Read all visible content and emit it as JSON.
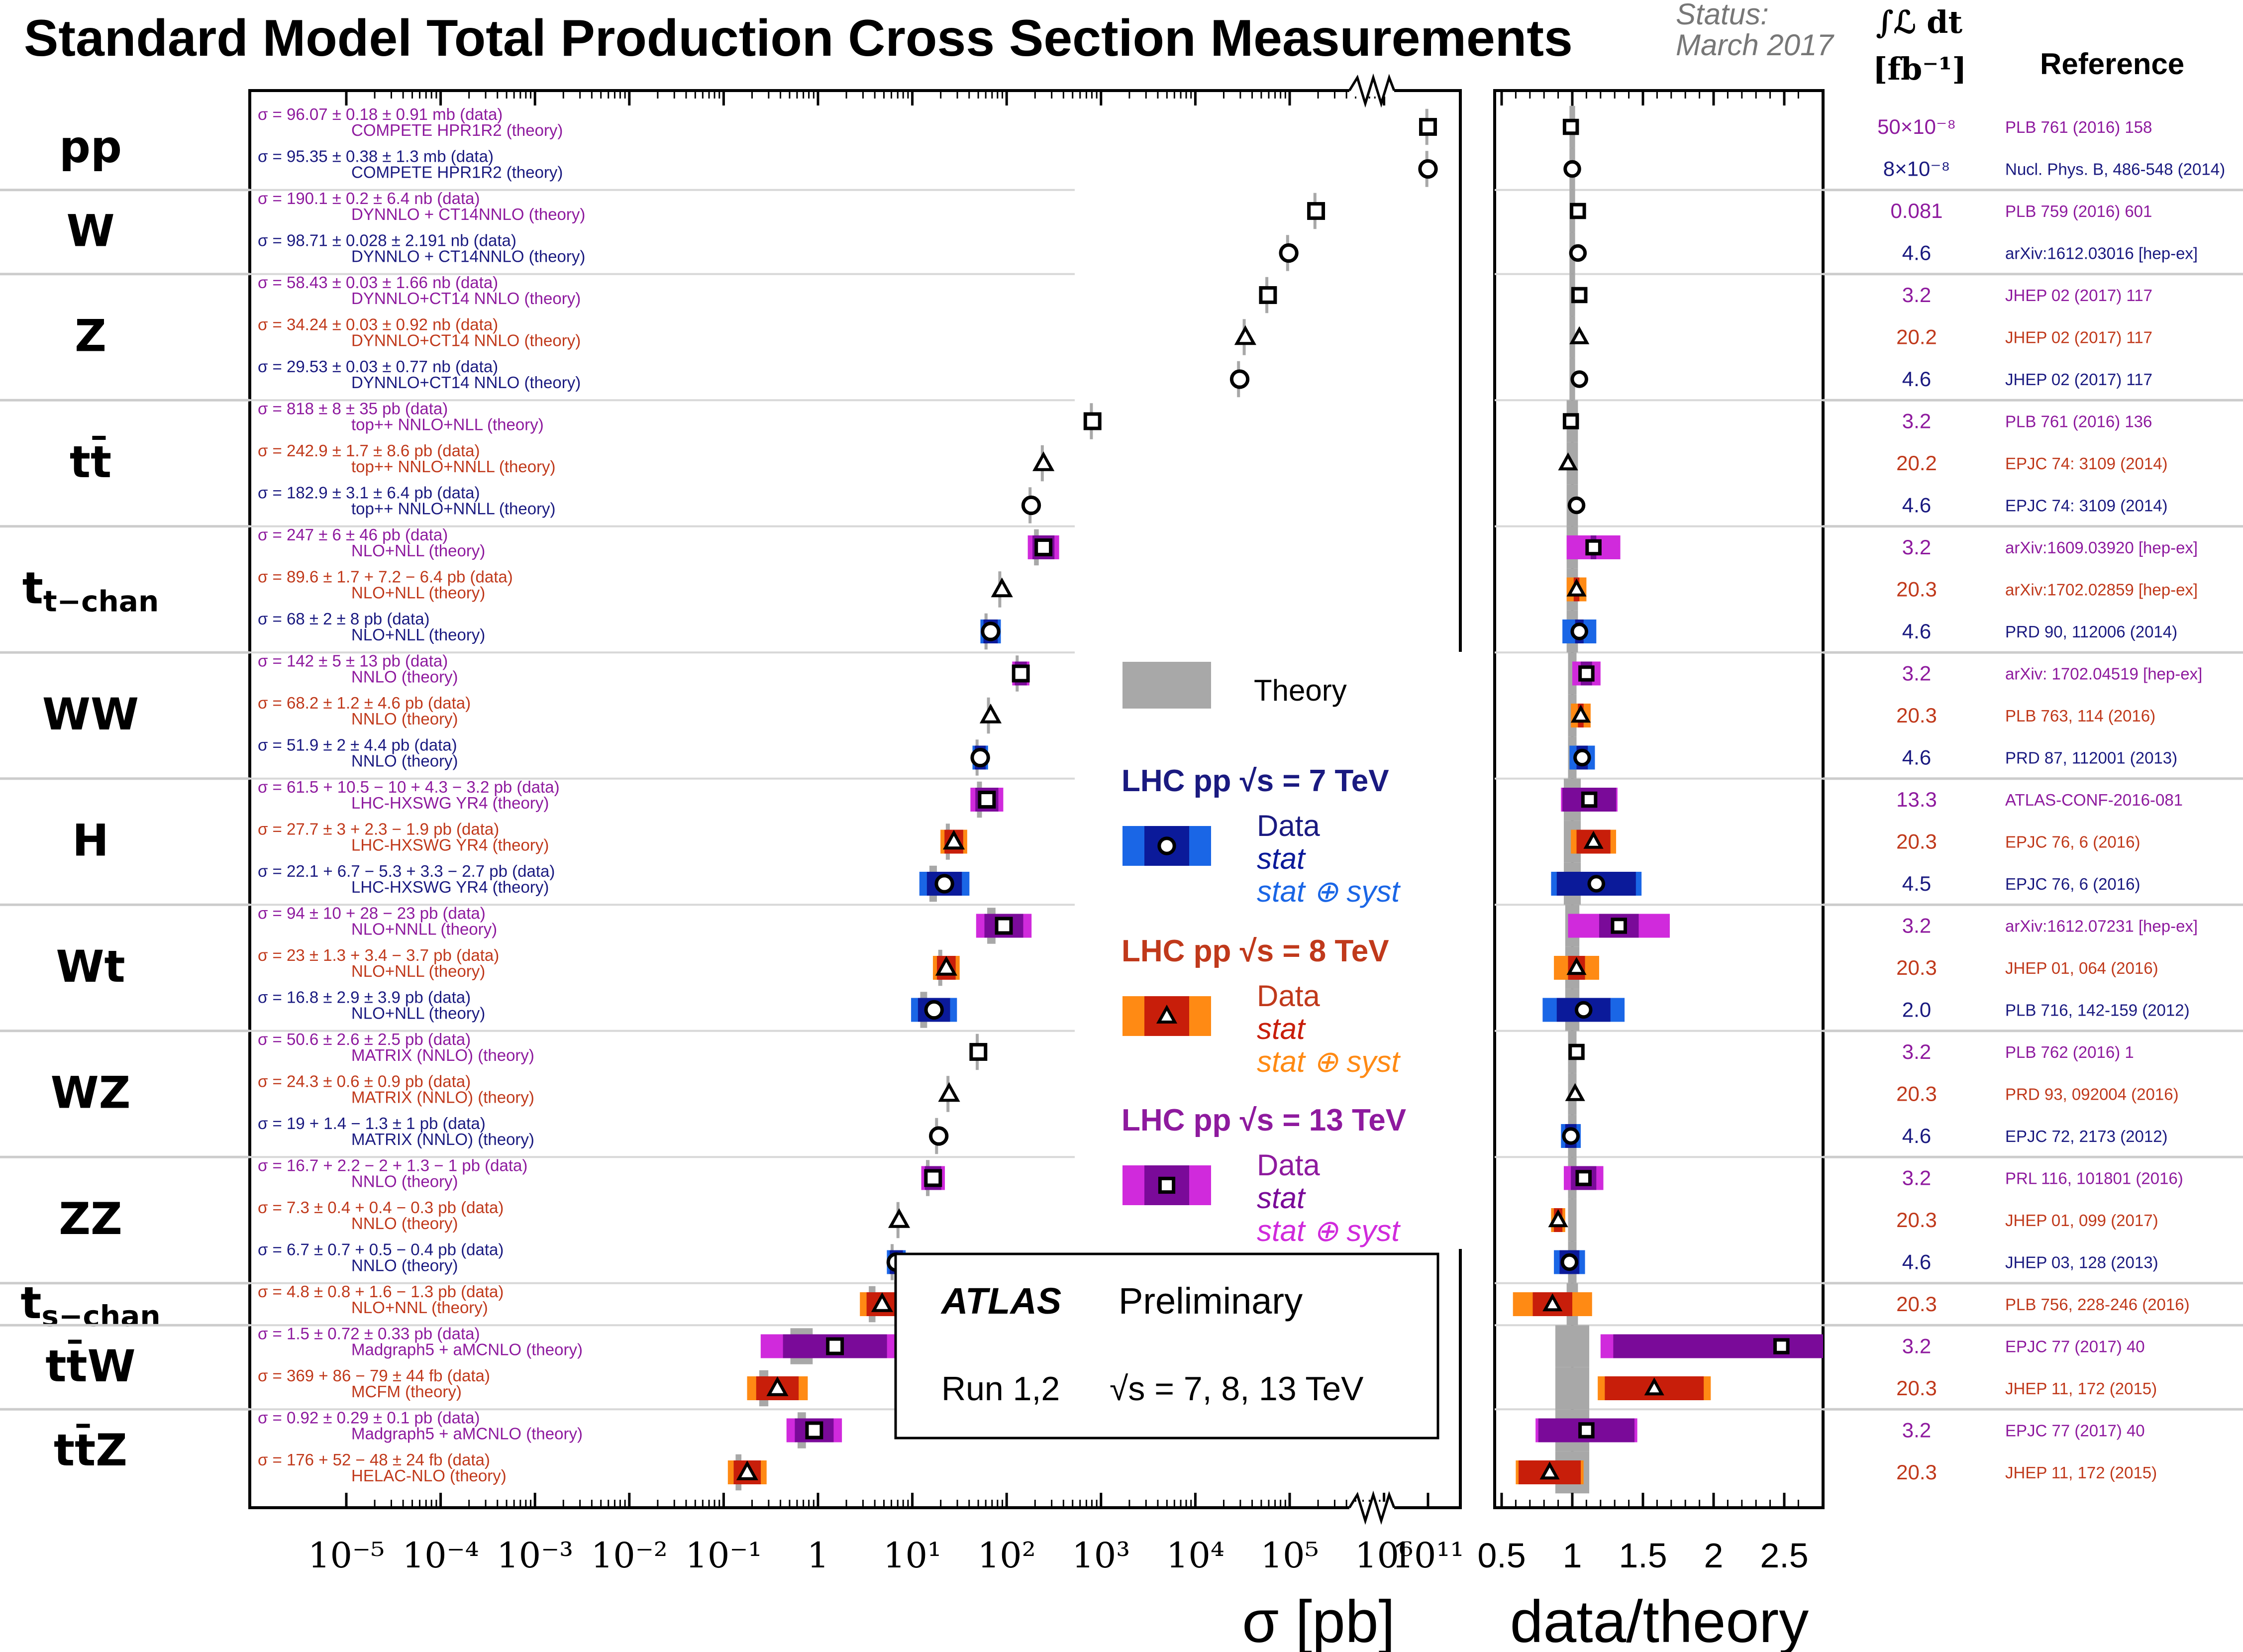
{
  "header": {
    "title": "Standard Model Total Production Cross Section Measurements",
    "status_line1": "Status:",
    "status_line2": "March 2017",
    "lumi_header1": "∫ℒ dt",
    "lumi_header2": "[fb⁻¹]",
    "ref_header": "Reference"
  },
  "colors": {
    "c7": "#1a1a80",
    "c8": "#c0391b",
    "c13": "#8e1a9e",
    "c7_stat": "#0b1a9a",
    "c7_syst": "#1a66e6",
    "c8_stat": "#c81e0a",
    "c8_syst": "#ff8a14",
    "c13_stat": "#7a0a99",
    "c13_syst": "#d02adc",
    "theory": "#a8a8a8"
  },
  "legend": {
    "theory_label": "Theory",
    "lhc7_label": "LHC pp  √s = 7 TeV",
    "lhc8_label": "LHC pp  √s = 8 TeV",
    "lhc13_label": "LHC pp  √s = 13 TeV",
    "data_label": "Data",
    "stat_label": "stat",
    "statsyst_label": "stat ⊕ syst"
  },
  "atlas_box": {
    "atlas": "ATLAS",
    "preliminary": "Preliminary",
    "run": "Run 1,2",
    "energies": "√s = 7, 8, 13 TeV"
  },
  "chart_data": [
    {
      "type": "scatter",
      "xlabel": "σ [pb]",
      "x_scale": "log",
      "x_ticks": [
        "10⁻⁵",
        "10⁻⁴",
        "10⁻³",
        "10⁻²",
        "10⁻¹",
        "1",
        "10¹",
        "10²",
        "10³",
        "10⁴",
        "10⁵",
        "10⁶",
        "10¹¹"
      ],
      "note": "axis broken between 10⁶ and 10¹¹"
    },
    {
      "type": "scatter",
      "xlabel": "data/theory",
      "xlim": [
        0.5,
        2.7
      ],
      "x_ticks": [
        "0.5",
        "1",
        "1.5",
        "2",
        "2.5"
      ]
    }
  ],
  "groups": [
    {
      "label": "pp",
      "sub": ""
    },
    {
      "label": "W",
      "sub": ""
    },
    {
      "label": "Z",
      "sub": ""
    },
    {
      "label": "tt̄",
      "sub": ""
    },
    {
      "label": "t",
      "sub": "t−chan"
    },
    {
      "label": "WW",
      "sub": ""
    },
    {
      "label": "H",
      "sub": ""
    },
    {
      "label": "Wt",
      "sub": ""
    },
    {
      "label": "WZ",
      "sub": ""
    },
    {
      "label": "ZZ",
      "sub": ""
    },
    {
      "label": "t",
      "sub": "s−chan"
    },
    {
      "label": "tt̄W",
      "sub": ""
    },
    {
      "label": "tt̄Z",
      "sub": ""
    }
  ],
  "measurements": [
    {
      "group": 0,
      "e": 13,
      "lg": 11.0,
      "data": "σ = 96.07 ± 0.18 ± 0.91 mb (data)",
      "theory": "COMPETE HPR1R2 (theory)",
      "ratio": 0.99,
      "stat": 0,
      "syst": 0,
      "th": 0,
      "lumi": "50×10⁻⁸",
      "ref": "PLB 761 (2016) 158"
    },
    {
      "group": 0,
      "e": 7,
      "lg": 11.0,
      "data": "σ = 95.35 ± 0.38 ± 1.3 mb (data)",
      "theory": "COMPETE HPR1R2 (theory)",
      "ratio": 1.0,
      "stat": 0,
      "syst": 0,
      "th": 0,
      "lumi": "8×10⁻⁸",
      "ref": "Nucl. Phys. B, 486-548 (2014)"
    },
    {
      "group": 1,
      "e": 13,
      "lg": 5.28,
      "data": "σ = 190.1 ± 0.2 ± 6.4 nb (data)",
      "theory": "DYNNLO + CT14NNLO (theory)",
      "ratio": 1.04,
      "stat": 0,
      "syst": 0,
      "th": 0,
      "lumi": "0.081",
      "ref": "PLB 759 (2016) 601"
    },
    {
      "group": 1,
      "e": 7,
      "lg": 4.99,
      "data": "σ = 98.71 ± 0.028 ± 2.191 nb (data)",
      "theory": "DYNNLO + CT14NNLO (theory)",
      "ratio": 1.04,
      "stat": 0,
      "syst": 0,
      "th": 0,
      "lumi": "4.6",
      "ref": "arXiv:1612.03016 [hep-ex]"
    },
    {
      "group": 2,
      "e": 13,
      "lg": 4.77,
      "data": "σ = 58.43 ± 0.03 ± 1.66 nb (data)",
      "theory": "DYNNLO+CT14 NNLO (theory)",
      "ratio": 1.05,
      "stat": 0,
      "syst": 0,
      "th": 0,
      "lumi": "3.2",
      "ref": "JHEP 02 (2017) 117"
    },
    {
      "group": 2,
      "e": 8,
      "lg": 4.53,
      "data": "σ = 34.24 ± 0.03 ± 0.92 nb (data)",
      "theory": "DYNNLO+CT14 NNLO (theory)",
      "ratio": 1.05,
      "stat": 0,
      "syst": 0,
      "th": 0,
      "lumi": "20.2",
      "ref": "JHEP 02 (2017) 117"
    },
    {
      "group": 2,
      "e": 7,
      "lg": 4.47,
      "data": "σ = 29.53 ± 0.03 ± 0.77 nb (data)",
      "theory": "DYNNLO+CT14 NNLO (theory)",
      "ratio": 1.05,
      "stat": 0,
      "syst": 0,
      "th": 0,
      "lumi": "4.6",
      "ref": "JHEP 02 (2017) 117"
    },
    {
      "group": 3,
      "e": 13,
      "lg": 2.91,
      "data": "σ = 818 ± 8 ± 35 pb (data)",
      "theory": "top++ NNLO+NLL (theory)",
      "ratio": 0.99,
      "stat": 0,
      "syst": 0,
      "th": 0.04,
      "lumi": "3.2",
      "ref": "PLB 761 (2016) 136"
    },
    {
      "group": 3,
      "e": 8,
      "lg": 2.39,
      "data": "σ = 242.9 ± 1.7 ± 8.6 pb (data)",
      "theory": "top++ NNLO+NNLL (theory)",
      "ratio": 0.97,
      "stat": 0,
      "syst": 0,
      "th": 0.04,
      "lumi": "20.2",
      "ref": "EPJC 74: 3109 (2014)"
    },
    {
      "group": 3,
      "e": 7,
      "lg": 2.26,
      "data": "σ = 182.9 ± 3.1 ± 6.4 pb (data)",
      "theory": "top++ NNLO+NNLL (theory)",
      "ratio": 1.03,
      "stat": 0,
      "syst": 0,
      "th": 0.04,
      "lumi": "4.6",
      "ref": "EPJC 74: 3109 (2014)"
    },
    {
      "group": 4,
      "e": 13,
      "lg": 2.39,
      "data": "σ = 247 ± 6 ± 46 pb (data)",
      "theory": "NLO+NLL (theory)",
      "ratio": 1.15,
      "stat": 0.02,
      "syst": 0.19,
      "th": 0.04,
      "lumi": "3.2",
      "ref": "arXiv:1609.03920 [hep-ex]"
    },
    {
      "group": 4,
      "e": 8,
      "lg": 1.95,
      "data": "σ = 89.6 ± 1.7 + 7.2 − 6.4 pb (data)",
      "theory": "NLO+NLL (theory)",
      "ratio": 1.03,
      "stat": 0.02,
      "syst": 0.07,
      "th": 0.04,
      "lumi": "20.3",
      "ref": "arXiv:1702.02859 [hep-ex]"
    },
    {
      "group": 4,
      "e": 7,
      "lg": 1.83,
      "data": "σ = 68 ± 2 ± 8 pb (data)",
      "theory": "NLO+NLL (theory)",
      "ratio": 1.05,
      "stat": 0.03,
      "syst": 0.12,
      "th": 0.04,
      "lumi": "4.6",
      "ref": "PRD 90, 112006 (2014)"
    },
    {
      "group": 5,
      "e": 13,
      "lg": 2.15,
      "data": "σ = 142 ± 5 ± 13 pb (data)",
      "theory": "NNLO (theory)",
      "ratio": 1.1,
      "stat": 0.04,
      "syst": 0.1,
      "th": 0.03,
      "lumi": "3.2",
      "ref": "arXiv: 1702.04519 [hep-ex]"
    },
    {
      "group": 5,
      "e": 8,
      "lg": 1.83,
      "data": "σ = 68.2 ± 1.2 ± 4.6 pb (data)",
      "theory": "NNLO (theory)",
      "ratio": 1.06,
      "stat": 0.02,
      "syst": 0.07,
      "th": 0.03,
      "lumi": "20.3",
      "ref": "PLB 763, 114 (2016)"
    },
    {
      "group": 5,
      "e": 7,
      "lg": 1.72,
      "data": "σ = 51.9 ± 2 ± 4.4 pb (data)",
      "theory": "NNLO (theory)",
      "ratio": 1.07,
      "stat": 0.04,
      "syst": 0.09,
      "th": 0.03,
      "lumi": "4.6",
      "ref": "PRD 87, 112001 (2013)"
    },
    {
      "group": 6,
      "e": 13,
      "lg": 1.79,
      "data": "σ = 61.5 + 10.5 − 10 + 4.3 − 3.2 pb (data)",
      "theory": "LHC-HXSWG YR4 (theory)",
      "ratio": 1.12,
      "stat": 0.19,
      "syst": 0.2,
      "th": 0.06,
      "lumi": "13.3",
      "ref": "ATLAS-CONF-2016-081"
    },
    {
      "group": 6,
      "e": 8,
      "lg": 1.44,
      "data": "σ = 27.7 ± 3 + 2.3 − 1.9 pb (data)",
      "theory": "LHC-HXSWG YR4 (theory)",
      "ratio": 1.15,
      "stat": 0.12,
      "syst": 0.16,
      "th": 0.06,
      "lumi": "20.3",
      "ref": "EPJC 76, 6 (2016)"
    },
    {
      "group": 6,
      "e": 7,
      "lg": 1.34,
      "data": "σ = 22.1 + 6.7 − 5.3 + 3.3 − 2.7 pb (data)",
      "theory": "LHC-HXSWG YR4 (theory)",
      "ratio": 1.17,
      "stat": 0.28,
      "syst": 0.32,
      "th": 0.06,
      "lumi": "4.5",
      "ref": "EPJC 76, 6 (2016)"
    },
    {
      "group": 7,
      "e": 13,
      "lg": 1.97,
      "data": "σ = 94 ± 10 + 28 − 23 pb (data)",
      "theory": "NLO+NNLL (theory)",
      "ratio": 1.33,
      "stat": 0.14,
      "syst": 0.36,
      "th": 0.05,
      "lumi": "3.2",
      "ref": "arXiv:1612.07231 [hep-ex]"
    },
    {
      "group": 7,
      "e": 8,
      "lg": 1.36,
      "data": "σ = 23 ± 1.3 + 3.4 − 3.7 pb (data)",
      "theory": "NLO+NLL (theory)",
      "ratio": 1.03,
      "stat": 0.06,
      "syst": 0.16,
      "th": 0.05,
      "lumi": "20.3",
      "ref": "JHEP 01, 064 (2016)"
    },
    {
      "group": 7,
      "e": 7,
      "lg": 1.23,
      "data": "σ = 16.8 ± 2.9 ± 3.9 pb (data)",
      "theory": "NLO+NLL (theory)",
      "ratio": 1.08,
      "stat": 0.19,
      "syst": 0.29,
      "th": 0.05,
      "lumi": "2.0",
      "ref": "PLB 716, 142-159 (2012)"
    },
    {
      "group": 8,
      "e": 13,
      "lg": 1.7,
      "data": "σ = 50.6 ± 2.6 ± 2.5 pb (data)",
      "theory": "MATRIX (NNLO) (theory)",
      "ratio": 1.03,
      "stat": 0,
      "syst": 0,
      "th": 0.03,
      "lumi": "3.2",
      "ref": "PLB 762 (2016) 1"
    },
    {
      "group": 8,
      "e": 8,
      "lg": 1.39,
      "data": "σ = 24.3 ± 0.6 ± 0.9 pb (data)",
      "theory": "MATRIX (NNLO) (theory)",
      "ratio": 1.02,
      "stat": 0,
      "syst": 0,
      "th": 0.03,
      "lumi": "20.3",
      "ref": "PRD 93, 092004 (2016)"
    },
    {
      "group": 8,
      "e": 7,
      "lg": 1.28,
      "data": "σ = 19 + 1.4 − 1.3 ± 1 pb (data)",
      "theory": "MATRIX (NNLO) (theory)",
      "ratio": 0.99,
      "stat": 0.04,
      "syst": 0.07,
      "th": 0.03,
      "lumi": "4.6",
      "ref": "EPJC 72, 2173 (2012)"
    },
    {
      "group": 9,
      "e": 13,
      "lg": 1.22,
      "data": "σ = 16.7 + 2.2 − 2 + 1.3 − 1 pb (data)",
      "theory": "NNLO (theory)",
      "ratio": 1.08,
      "stat": 0.09,
      "syst": 0.14,
      "th": 0.03,
      "lumi": "3.2",
      "ref": "PRL 116, 101801 (2016)"
    },
    {
      "group": 9,
      "e": 8,
      "lg": 0.86,
      "data": "σ = 7.3 ± 0.4 + 0.4 − 0.3 pb (data)",
      "theory": "NNLO (theory)",
      "ratio": 0.9,
      "stat": 0.03,
      "syst": 0.05,
      "th": 0.03,
      "lumi": "20.3",
      "ref": "JHEP 01, 099 (2017)"
    },
    {
      "group": 9,
      "e": 7,
      "lg": 0.83,
      "data": "σ = 6.7 ± 0.7 + 0.5 − 0.4 pb (data)",
      "theory": "NNLO (theory)",
      "ratio": 0.98,
      "stat": 0.07,
      "syst": 0.11,
      "th": 0.03,
      "lumi": "4.6",
      "ref": "JHEP 03, 128 (2013)"
    },
    {
      "group": 10,
      "e": 8,
      "lg": 0.68,
      "data": "σ = 4.8 ± 0.8 + 1.6 − 1.3 pb (data)",
      "theory": "NLO+NNL (theory)",
      "ratio": 0.86,
      "stat": 0.14,
      "syst": 0.28,
      "th": 0.04,
      "lumi": "20.3",
      "ref": "PLB 756, 228-246 (2016)"
    },
    {
      "group": 11,
      "e": 13,
      "lg": 0.18,
      "data": "σ = 1.5 ± 0.72 ± 0.33 pb (data)",
      "theory": "Madgraph5 + aMCNLO (theory)",
      "ratio": 2.48,
      "stat": 1.19,
      "syst": 1.28,
      "th": 0.12,
      "lumi": "3.2",
      "ref": "EPJC 77 (2017) 40"
    },
    {
      "group": 11,
      "e": 8,
      "lg": -0.43,
      "data": "σ = 369 + 86 − 79 ± 44 fb (data)",
      "theory": "MCFM (theory)",
      "ratio": 1.58,
      "stat": 0.35,
      "syst": 0.4,
      "th": 0.12,
      "lumi": "20.3",
      "ref": "JHEP 11, 172 (2015)"
    },
    {
      "group": 12,
      "e": 13,
      "lg": -0.04,
      "data": "σ = 0.92 ± 0.29 ± 0.1 pb (data)",
      "theory": "Madgraph5 + aMCNLO (theory)",
      "ratio": 1.1,
      "stat": 0.34,
      "syst": 0.36,
      "th": 0.12,
      "lumi": "3.2",
      "ref": "EPJC 77 (2017) 40"
    },
    {
      "group": 12,
      "e": 8,
      "lg": -0.75,
      "data": "σ = 176 + 52 − 48 ± 24 fb (data)",
      "theory": "HELAC-NLO (theory)",
      "ratio": 0.84,
      "stat": 0.22,
      "syst": 0.24,
      "th": 0.12,
      "lumi": "20.3",
      "ref": "JHEP 11, 172 (2015)"
    }
  ]
}
